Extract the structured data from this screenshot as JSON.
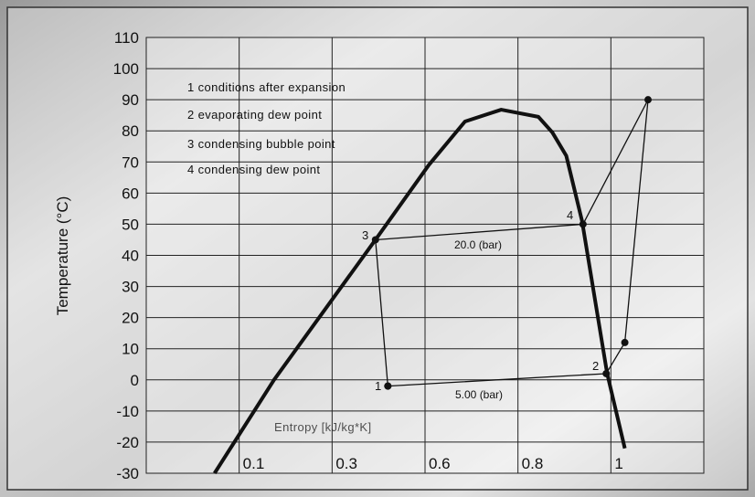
{
  "chart_data": {
    "type": "line",
    "y_label": "Temperature (°C)",
    "x_label": "Entropy [kJ/kg*K]",
    "notes": [
      "1 conditions after expansion",
      "2 evaporating dew point",
      "3 condensing bubble point",
      "4 condensing dew point"
    ],
    "point_labels": [
      "1",
      "2",
      "3",
      "4"
    ],
    "pressure_labels": [
      "20.0 (bar)",
      "5.00 (bar)"
    ],
    "xlim": [
      -0.1,
      1.2
    ],
    "xticks": [
      0.1,
      0.3,
      0.6,
      0.8,
      1.0
    ],
    "ylim": [
      -30,
      110
    ],
    "yticks": [
      -30,
      -20,
      -10,
      0,
      10,
      20,
      30,
      40,
      50,
      60,
      70,
      80,
      90,
      100,
      110
    ],
    "grid": true,
    "series": [
      {
        "color": "#111111",
        "x": [
          0.047,
          0.175,
          0.44,
          0.608,
          0.686,
          0.764,
          0.844,
          0.874,
          0.904,
          0.938,
          0.992,
          1.03
        ],
        "values": [
          -30,
          0,
          45,
          69,
          83,
          86.8,
          84.5,
          79.5,
          72,
          51,
          2,
          -22
        ]
      },
      {
        "color": "#111111",
        "markers": true,
        "x": [
          0.48,
          0.44,
          0.94,
          1.08,
          1.03,
          0.99,
          0.48
        ],
        "values": [
          -2,
          45,
          50,
          90,
          12,
          2,
          -2
        ]
      }
    ]
  }
}
